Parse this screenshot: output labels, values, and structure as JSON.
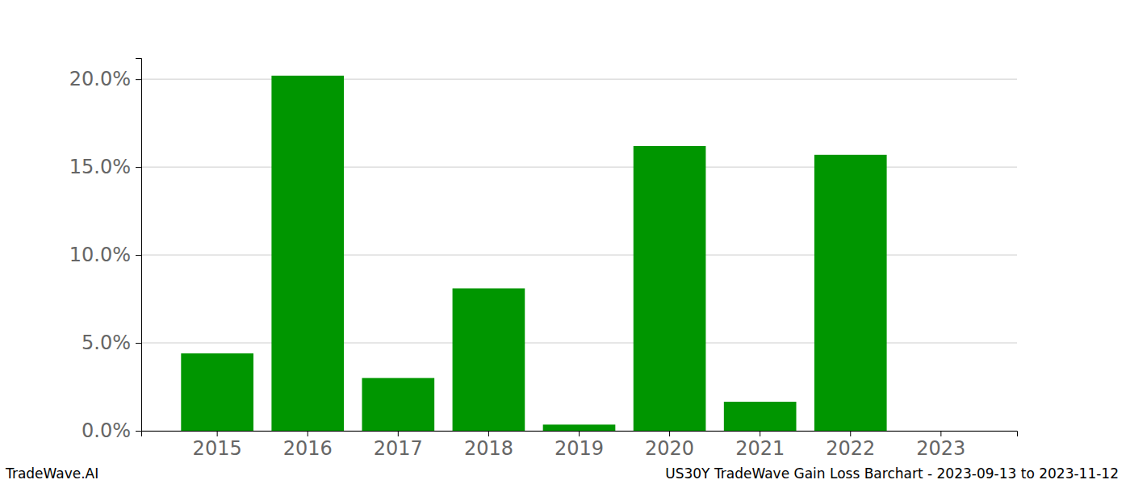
{
  "chart_data": {
    "type": "bar",
    "title": "US30Y TradeWave Gain Loss Barchart - 2023-09-13 to 2023-11-12",
    "annotations": [
      "TradeWave.AI"
    ],
    "categories": [
      "2015",
      "2016",
      "2017",
      "2018",
      "2019",
      "2020",
      "2021",
      "2022",
      "2023"
    ],
    "values": [
      4.4,
      20.2,
      3.0,
      8.1,
      0.35,
      16.2,
      1.65,
      15.7,
      0
    ],
    "color": "#009600",
    "ylim": [
      0,
      21.2
    ],
    "yticks": [
      {
        "value": 0,
        "label": "0.0%"
      },
      {
        "value": 5,
        "label": "5.0%"
      },
      {
        "value": 10,
        "label": "10.0%"
      },
      {
        "value": 15,
        "label": "15.0%"
      },
      {
        "value": 20,
        "label": "20.0%"
      }
    ],
    "grid": true
  }
}
